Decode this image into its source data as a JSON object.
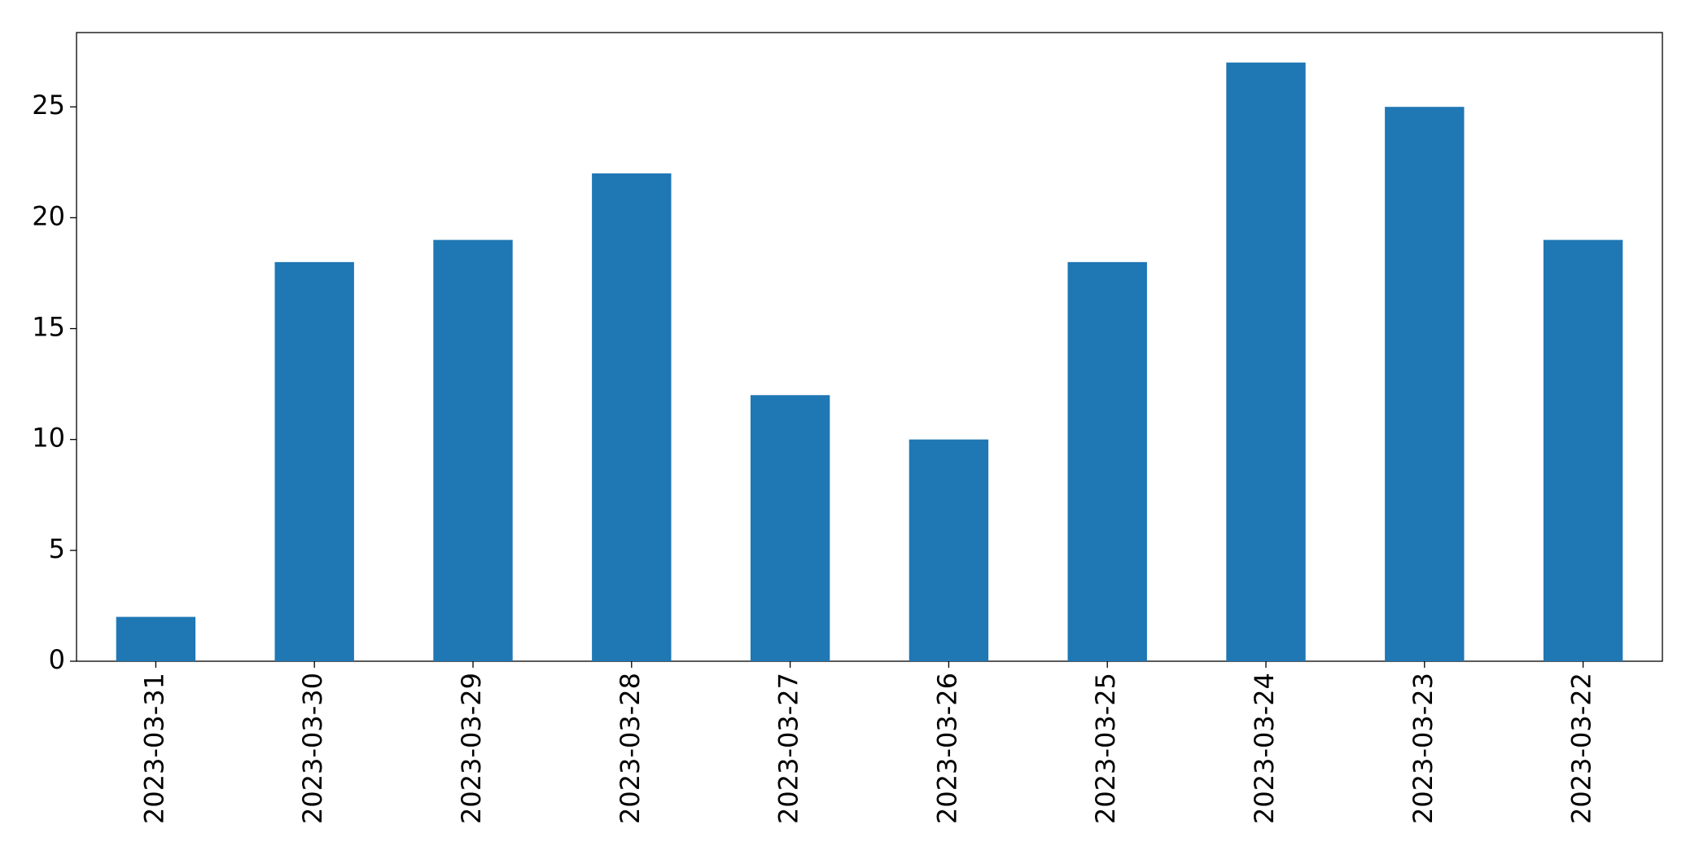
{
  "chart_data": {
    "type": "bar",
    "categories": [
      "2023-03-31",
      "2023-03-30",
      "2023-03-29",
      "2023-03-28",
      "2023-03-27",
      "2023-03-26",
      "2023-03-25",
      "2023-03-24",
      "2023-03-23",
      "2023-03-22"
    ],
    "values": [
      2,
      18,
      19,
      22,
      12,
      10,
      18,
      27,
      25,
      19
    ],
    "color": "#1f77b4",
    "ylim": [
      0,
      28.35
    ],
    "yticks": [
      0,
      5,
      10,
      15,
      20,
      25
    ],
    "grid": false
  }
}
